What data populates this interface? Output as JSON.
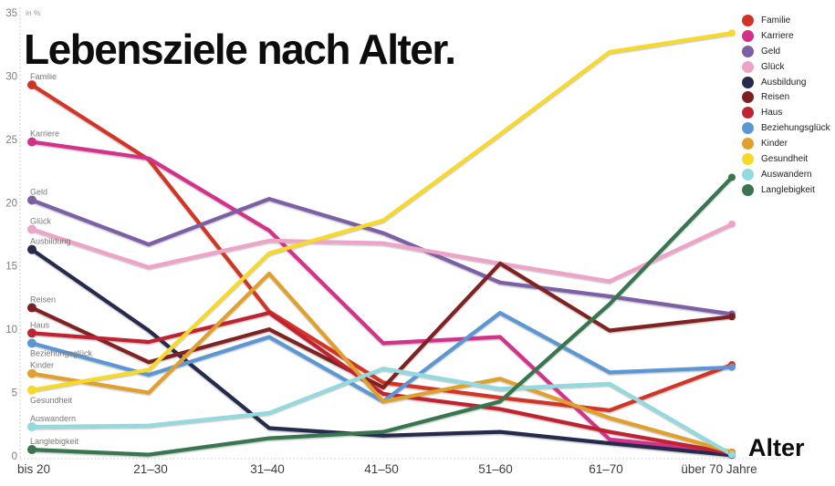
{
  "title": "Lebensziele nach Alter.",
  "chart_data": {
    "type": "line",
    "title": "Lebensziele nach Alter.",
    "xlabel": "Alter",
    "ylabel": "in %",
    "ylim": [
      0,
      35
    ],
    "y_ticks": [
      0,
      5,
      10,
      15,
      20,
      25,
      30,
      35
    ],
    "grid": "dotted y-axis and baseline only",
    "legend_position": "top-right",
    "categories": [
      "bis 20",
      "21–30",
      "31–40",
      "41–50",
      "51–60",
      "61–70",
      "über 70 Jahre"
    ],
    "series": [
      {
        "name": "Familie",
        "color": "#d03425",
        "values": [
          29.3,
          23.4,
          11.4,
          5.8,
          4.6,
          3.6,
          7.2
        ]
      },
      {
        "name": "Karriere",
        "color": "#d23189",
        "values": [
          24.8,
          23.5,
          17.8,
          8.9,
          9.4,
          1.3,
          0.3
        ]
      },
      {
        "name": "Geld",
        "color": "#7b5fa5",
        "values": [
          20.2,
          16.7,
          20.3,
          17.6,
          13.7,
          12.6,
          11.2
        ]
      },
      {
        "name": "Glück",
        "color": "#eda4c8",
        "values": [
          17.9,
          14.9,
          17.0,
          16.8,
          15.2,
          13.8,
          18.3
        ]
      },
      {
        "name": "Ausbildung",
        "color": "#272b4e",
        "values": [
          16.3,
          9.9,
          2.2,
          1.6,
          1.9,
          1.0,
          0.05
        ]
      },
      {
        "name": "Reisen",
        "color": "#7e2022",
        "values": [
          11.7,
          7.4,
          10.0,
          5.4,
          15.2,
          9.9,
          11.0
        ]
      },
      {
        "name": "Haus",
        "color": "#c02433",
        "values": [
          9.7,
          9.0,
          11.3,
          4.9,
          3.7,
          1.9,
          0.2
        ]
      },
      {
        "name": "Beziehungsglück",
        "color": "#5b97d4",
        "values": [
          8.9,
          6.4,
          9.4,
          4.3,
          11.3,
          6.6,
          7.0
        ]
      },
      {
        "name": "Kinder",
        "color": "#dfa02f",
        "values": [
          6.5,
          5.0,
          14.4,
          4.3,
          6.1,
          3.0,
          0.3
        ]
      },
      {
        "name": "Gesundheit",
        "color": "#f6d929",
        "values": [
          5.2,
          6.8,
          16.0,
          18.6,
          25.4,
          31.9,
          33.4
        ]
      },
      {
        "name": "Auswandern",
        "color": "#93d9de",
        "values": [
          2.3,
          2.4,
          3.4,
          6.9,
          5.3,
          5.7,
          0.1
        ]
      },
      {
        "name": "Langlebigkeit",
        "color": "#39764f",
        "values": [
          0.5,
          0.1,
          1.4,
          1.9,
          4.3,
          12.0,
          22.0
        ]
      }
    ]
  }
}
